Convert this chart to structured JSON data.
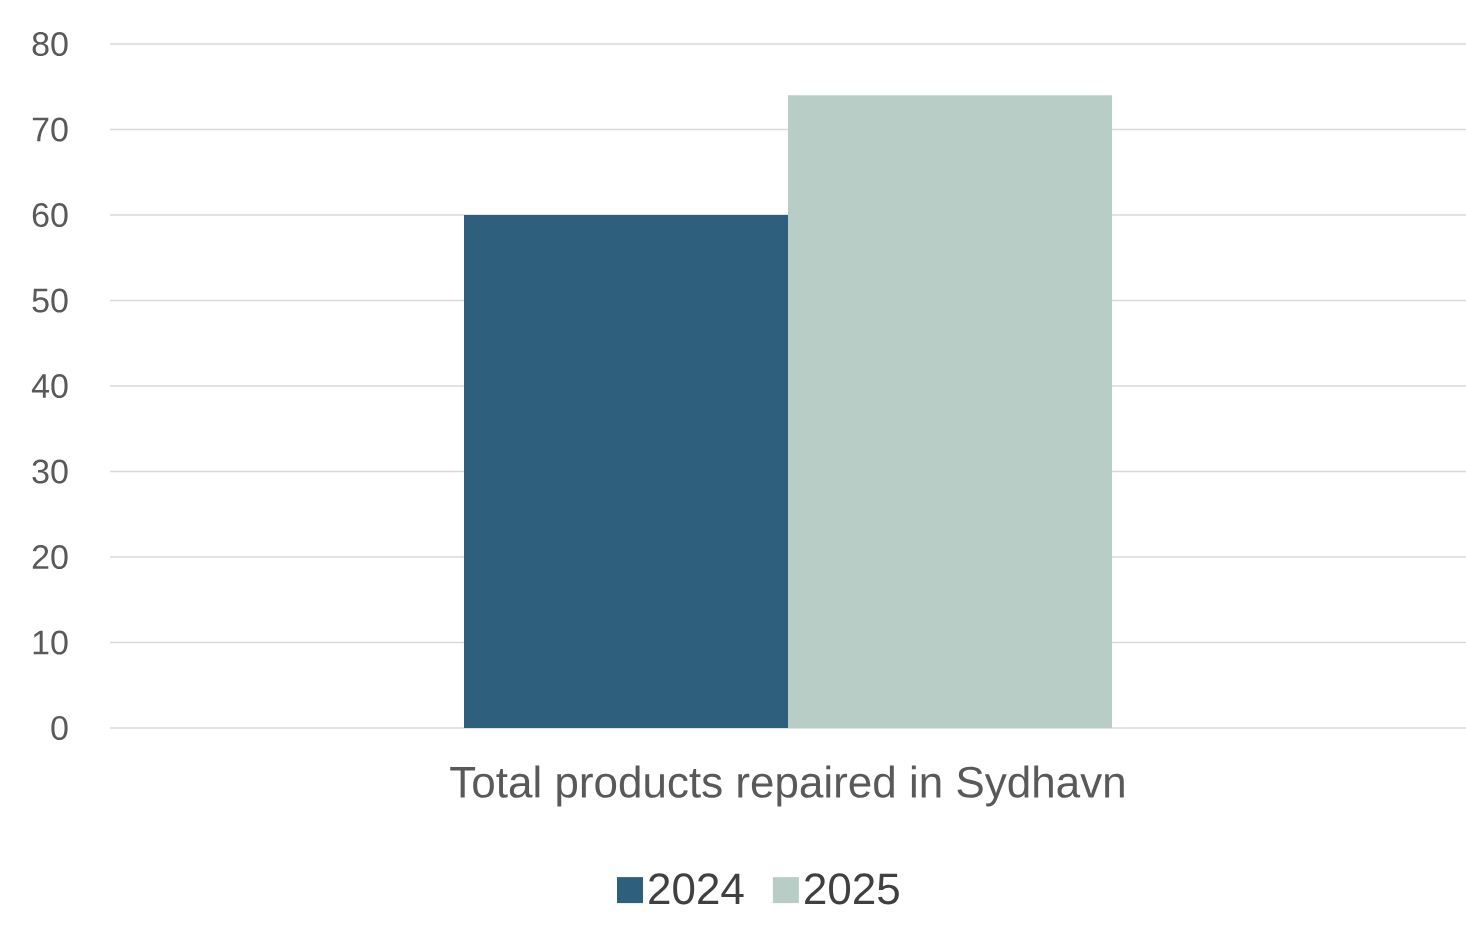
{
  "chart_data": {
    "type": "bar",
    "categories": [
      "Total products repaired in Sydhavn"
    ],
    "series": [
      {
        "name": "2024",
        "color": "#2e5f7c",
        "values": [
          60
        ]
      },
      {
        "name": "2025",
        "color": "#b9cdc7",
        "values": [
          74
        ]
      }
    ],
    "ylim": [
      0,
      80
    ],
    "yticks": [
      0,
      10,
      20,
      30,
      40,
      50,
      60,
      70,
      80
    ],
    "grid": "y",
    "legend": "bottom"
  }
}
